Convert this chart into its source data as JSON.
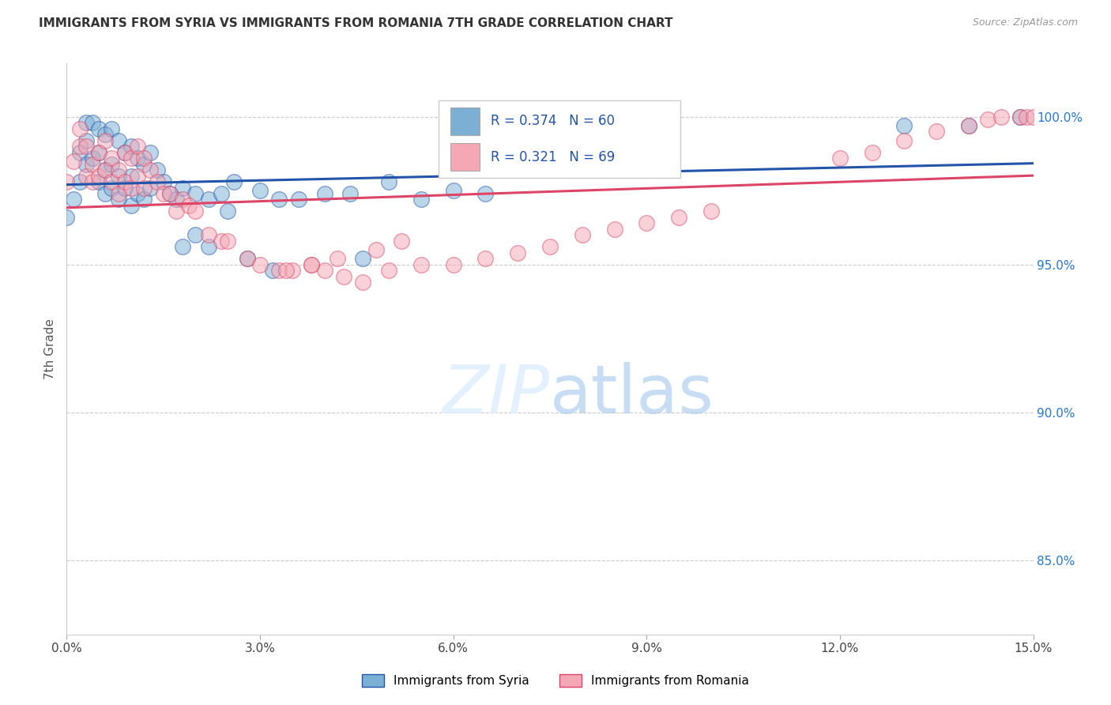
{
  "title": "IMMIGRANTS FROM SYRIA VS IMMIGRANTS FROM ROMANIA 7TH GRADE CORRELATION CHART",
  "source": "Source: ZipAtlas.com",
  "ylabel": "7th Grade",
  "ylabel_ticks": [
    "85.0%",
    "90.0%",
    "95.0%",
    "100.0%"
  ],
  "ylabel_tick_vals": [
    0.85,
    0.9,
    0.95,
    1.0
  ],
  "xtick_vals": [
    0.0,
    0.03,
    0.06,
    0.09,
    0.12,
    0.15
  ],
  "xtick_labels": [
    "0.0%",
    "3.0%",
    "6.0%",
    "9.0%",
    "12.0%",
    "15.0%"
  ],
  "legend_label_syria": "Immigrants from Syria",
  "legend_label_romania": "Immigrants from Romania",
  "R_syria": 0.374,
  "N_syria": 60,
  "R_romania": 0.321,
  "N_romania": 69,
  "color_syria": "#7BAFD4",
  "color_romania": "#F4A7B5",
  "line_color_syria": "#2255AA",
  "line_color_romania": "#DD4466",
  "xlim": [
    0.0,
    0.15
  ],
  "ylim": [
    0.825,
    1.018
  ],
  "syria_x": [
    0.0,
    0.001,
    0.002,
    0.002,
    0.003,
    0.003,
    0.003,
    0.004,
    0.004,
    0.005,
    0.005,
    0.005,
    0.006,
    0.006,
    0.006,
    0.007,
    0.007,
    0.007,
    0.008,
    0.008,
    0.008,
    0.009,
    0.009,
    0.01,
    0.01,
    0.01,
    0.011,
    0.011,
    0.012,
    0.012,
    0.013,
    0.013,
    0.014,
    0.015,
    0.016,
    0.017,
    0.018,
    0.02,
    0.022,
    0.024,
    0.026,
    0.03,
    0.033,
    0.036,
    0.04,
    0.044,
    0.05,
    0.055,
    0.06,
    0.065,
    0.02,
    0.025,
    0.028,
    0.032,
    0.018,
    0.022,
    0.046,
    0.13,
    0.14,
    0.148
  ],
  "syria_y": [
    0.966,
    0.972,
    0.988,
    0.978,
    0.998,
    0.992,
    0.984,
    0.998,
    0.986,
    0.996,
    0.988,
    0.978,
    0.994,
    0.982,
    0.974,
    0.996,
    0.984,
    0.976,
    0.992,
    0.98,
    0.972,
    0.988,
    0.976,
    0.99,
    0.98,
    0.97,
    0.986,
    0.974,
    0.984,
    0.972,
    0.988,
    0.976,
    0.982,
    0.978,
    0.974,
    0.972,
    0.976,
    0.974,
    0.972,
    0.974,
    0.978,
    0.975,
    0.972,
    0.972,
    0.974,
    0.974,
    0.978,
    0.972,
    0.975,
    0.974,
    0.96,
    0.968,
    0.952,
    0.948,
    0.956,
    0.956,
    0.952,
    0.997,
    0.997,
    1.0
  ],
  "romania_x": [
    0.0,
    0.001,
    0.002,
    0.002,
    0.003,
    0.003,
    0.004,
    0.004,
    0.005,
    0.005,
    0.006,
    0.006,
    0.007,
    0.007,
    0.008,
    0.008,
    0.009,
    0.009,
    0.01,
    0.01,
    0.011,
    0.011,
    0.012,
    0.012,
    0.013,
    0.014,
    0.015,
    0.016,
    0.017,
    0.018,
    0.019,
    0.02,
    0.022,
    0.024,
    0.025,
    0.028,
    0.03,
    0.033,
    0.035,
    0.038,
    0.04,
    0.043,
    0.046,
    0.05,
    0.055,
    0.06,
    0.065,
    0.07,
    0.075,
    0.08,
    0.085,
    0.09,
    0.095,
    0.1,
    0.034,
    0.038,
    0.042,
    0.048,
    0.052,
    0.12,
    0.125,
    0.13,
    0.135,
    0.14,
    0.143,
    0.145,
    0.148,
    0.149,
    0.15
  ],
  "romania_y": [
    0.978,
    0.985,
    0.996,
    0.99,
    0.99,
    0.98,
    0.984,
    0.978,
    0.988,
    0.98,
    0.992,
    0.982,
    0.986,
    0.978,
    0.982,
    0.974,
    0.988,
    0.978,
    0.986,
    0.976,
    0.99,
    0.98,
    0.986,
    0.976,
    0.982,
    0.978,
    0.974,
    0.974,
    0.968,
    0.972,
    0.97,
    0.968,
    0.96,
    0.958,
    0.958,
    0.952,
    0.95,
    0.948,
    0.948,
    0.95,
    0.948,
    0.946,
    0.944,
    0.948,
    0.95,
    0.95,
    0.952,
    0.954,
    0.956,
    0.96,
    0.962,
    0.964,
    0.966,
    0.968,
    0.948,
    0.95,
    0.952,
    0.955,
    0.958,
    0.986,
    0.988,
    0.992,
    0.995,
    0.997,
    0.999,
    1.0,
    1.0,
    1.0,
    1.0
  ]
}
